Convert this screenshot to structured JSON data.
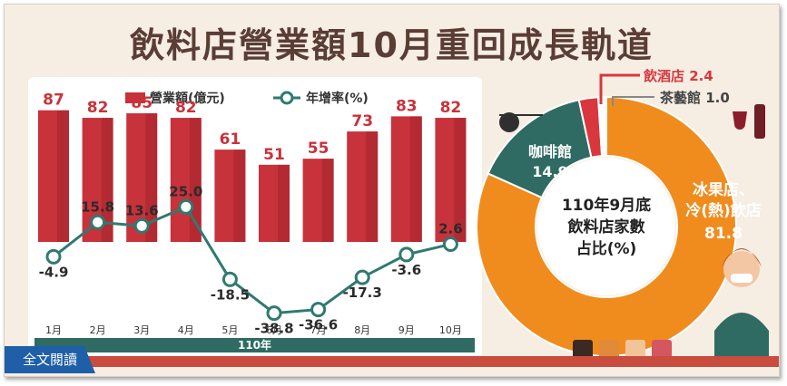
{
  "title": "飲料店營業額10月重回成長軌道",
  "read_more": "全文閱讀",
  "colors": {
    "bar": "#c8323b",
    "bar_dark": "#a3242c",
    "line": "#2f7a70",
    "accent": "#2f6b63",
    "donut_orange": "#f08c1e",
    "donut_teal": "#2f6b63",
    "donut_red": "#d9363e",
    "donut_light": "#ffffff"
  },
  "chart_data": [
    {
      "type": "bar",
      "title": "",
      "legend": [
        "營業額(億元)",
        "年增率(%)"
      ],
      "legend_position": "top",
      "year_label": "110年",
      "categories": [
        "1月",
        "2月",
        "3月",
        "4月",
        "5月",
        "6月",
        "7月",
        "8月",
        "9月",
        "10月"
      ],
      "series": [
        {
          "name": "營業額(億元)",
          "type": "bar",
          "values": [
            87,
            82,
            85,
            82,
            61,
            51,
            55,
            73,
            83,
            82
          ]
        },
        {
          "name": "年增率(%)",
          "type": "line",
          "values": [
            -4.9,
            15.8,
            13.6,
            25.0,
            -18.5,
            -38.8,
            -36.6,
            -17.3,
            -3.6,
            2.6
          ]
        }
      ],
      "y_bar_range": [
        0,
        100
      ],
      "y_line_range": [
        -45,
        35
      ],
      "grid": false
    },
    {
      "type": "pie",
      "donut": true,
      "center_label": "110年9月底\n飲料店家數\n占比(%)",
      "slices": [
        {
          "label": "冰果店、冷(熱)飲店",
          "value": 81.8
        },
        {
          "label": "咖啡館",
          "value": 14.9
        },
        {
          "label": "飲酒店",
          "value": 2.4
        },
        {
          "label": "茶藝館",
          "value": 1.0
        }
      ]
    }
  ]
}
